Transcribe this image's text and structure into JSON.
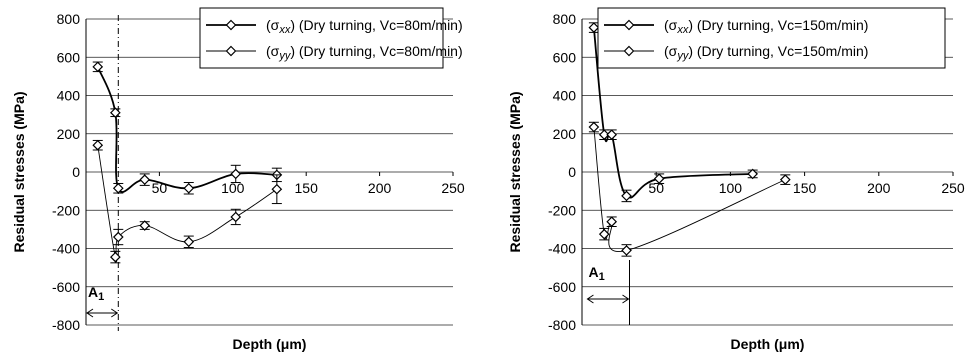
{
  "chart_data": [
    {
      "type": "line",
      "xlabel": "Depth (μm)",
      "ylabel": "Residual stresses (MPa)",
      "xlim": [
        0,
        250
      ],
      "ylim": [
        -800,
        800
      ],
      "x_ticks": [
        "50",
        "100",
        "150",
        "200",
        "250"
      ],
      "y_ticks": [
        "800",
        "600",
        "400",
        "200",
        "0",
        "-200",
        "-400",
        "-600",
        "-800"
      ],
      "grid": "horizontal",
      "legend_position": "top-right",
      "series": [
        {
          "name": "(σxx) (Dry turning, Vc=80m/min)",
          "legend_main": "(σ",
          "legend_sub": "xx",
          "legend_rest": ") (Dry turning, Vc=80m/min)",
          "line": "thick",
          "x": [
            8,
            20,
            22,
            40,
            70,
            102,
            130
          ],
          "y": [
            550,
            310,
            -85,
            -40,
            -85,
            -10,
            -15
          ],
          "err": [
            25,
            20,
            25,
            30,
            30,
            45,
            35
          ]
        },
        {
          "name": "(σyy) (Dry turning, Vc=80m/min)",
          "legend_main": "(σ",
          "legend_sub": "yy",
          "legend_rest": ") (Dry turning, Vc=80m/min)",
          "line": "thin",
          "x": [
            8,
            20,
            22,
            40,
            70,
            102,
            130
          ],
          "y": [
            140,
            -445,
            -340,
            -280,
            -365,
            -235,
            -90
          ],
          "err": [
            25,
            30,
            40,
            20,
            30,
            40,
            75
          ]
        }
      ],
      "annotation": {
        "label": "A",
        "subscript": "1",
        "x_from": 0,
        "x_to": 22
      }
    },
    {
      "type": "line",
      "xlabel": "Depth (μm)",
      "ylabel": "Residual stresses (MPa)",
      "xlim": [
        0,
        250
      ],
      "ylim": [
        -800,
        800
      ],
      "x_ticks": [
        "50",
        "100",
        "150",
        "200",
        "250"
      ],
      "y_ticks": [
        "800",
        "600",
        "400",
        "200",
        "0",
        "-200",
        "-400",
        "-600",
        "-800"
      ],
      "grid": "horizontal",
      "legend_position": "top-right",
      "series": [
        {
          "name": "(σxx) (Dry turning, Vc=150m/min)",
          "legend_main": "(σ",
          "legend_sub": "xx",
          "legend_rest": ") (Dry turning, Vc=150m/min)",
          "line": "thick",
          "x": [
            8,
            15,
            20,
            30,
            52,
            115
          ],
          "y": [
            755,
            195,
            195,
            -125,
            -35,
            -10
          ],
          "err": [
            25,
            25,
            25,
            30,
            25,
            20
          ]
        },
        {
          "name": "(σyy) (Dry turning, Vc=150m/min)",
          "legend_main": "(σ",
          "legend_sub": "yy",
          "legend_rest": ") (Dry turning, Vc=150m/min)",
          "line": "thin",
          "x": [
            8,
            15,
            20,
            30,
            137
          ],
          "y": [
            235,
            -325,
            -260,
            -410,
            -40
          ],
          "err": [
            25,
            30,
            25,
            30,
            25
          ]
        }
      ],
      "annotation": {
        "label": "A",
        "subscript": "1",
        "x_from": 3,
        "x_to": 32
      }
    }
  ]
}
